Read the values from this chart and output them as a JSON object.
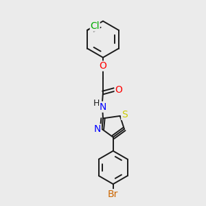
{
  "background_color": "#ebebeb",
  "bond_color": "#1a1a1a",
  "cl_color": "#00aa00",
  "o_color": "#ff0000",
  "n_color": "#0000ff",
  "s_color": "#cccc00",
  "br_color": "#cc6600",
  "font_size": 9,
  "lw": 1.4,
  "xlim": [
    0,
    10
  ],
  "ylim": [
    0,
    10
  ],
  "figsize": [
    3.0,
    3.0
  ],
  "dpi": 100
}
